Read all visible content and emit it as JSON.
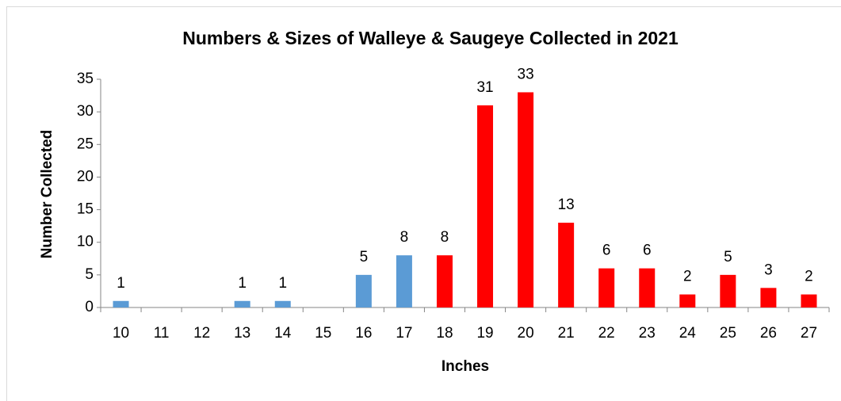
{
  "chart_data": {
    "type": "bar",
    "title": "Numbers & Sizes of Walleye & Saugeye Collected in 2021",
    "x_label": "Inches",
    "y_label": "Number Collected",
    "categories": [
      "10",
      "11",
      "12",
      "13",
      "14",
      "15",
      "16",
      "17",
      "18",
      "19",
      "20",
      "21",
      "22",
      "23",
      "24",
      "25",
      "26",
      "27"
    ],
    "values": [
      1,
      0,
      0,
      1,
      1,
      0,
      5,
      8,
      8,
      31,
      33,
      13,
      6,
      6,
      2,
      5,
      3,
      2
    ],
    "colors": [
      "#5b9bd5",
      "#5b9bd5",
      "#5b9bd5",
      "#5b9bd5",
      "#5b9bd5",
      "#5b9bd5",
      "#5b9bd5",
      "#5b9bd5",
      "#ff0000",
      "#ff0000",
      "#ff0000",
      "#ff0000",
      "#ff0000",
      "#ff0000",
      "#ff0000",
      "#ff0000",
      "#ff0000",
      "#ff0000"
    ],
    "ylim": [
      0,
      35
    ],
    "yticks": [
      0,
      5,
      10,
      15,
      20,
      25,
      30,
      35
    ],
    "grid": false
  }
}
